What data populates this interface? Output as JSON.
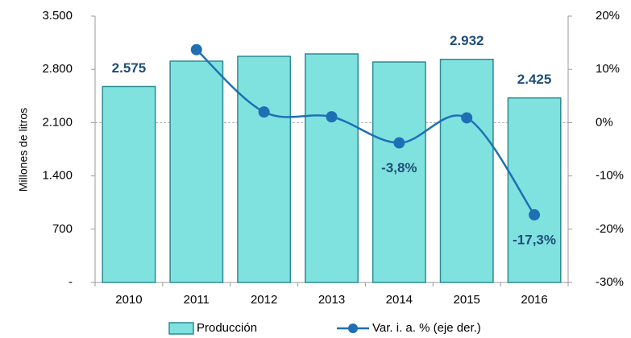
{
  "chart_data": {
    "type": "bar_line",
    "y_label": "Millones de litros",
    "categories": [
      "2010",
      "2011",
      "2012",
      "2013",
      "2014",
      "2015",
      "2016"
    ],
    "series": [
      {
        "name": "Producción",
        "type": "bar",
        "color": "#80e2df",
        "values": [
          2575,
          2908,
          2971,
          3003,
          2897,
          2932,
          2425
        ],
        "value_labels": [
          "2.575",
          null,
          null,
          null,
          null,
          "2.932",
          "2.425"
        ]
      },
      {
        "name": "Var. i. a. % (eje der.)",
        "type": "line",
        "axis": "y2",
        "color": "#1f6fb4",
        "values": [
          null,
          13.7,
          2.0,
          1.1,
          -3.8,
          0.9,
          -17.3
        ],
        "value_labels": [
          null,
          null,
          null,
          null,
          "-3,8%",
          null,
          "-17,3%"
        ]
      }
    ],
    "ylim": [
      0,
      3500
    ],
    "yticks": [
      {
        "value": 0,
        "label": "-"
      },
      700,
      {
        "value": 1400,
        "label": "1.400"
      },
      {
        "value": 2100,
        "label": "2.100"
      },
      {
        "value": 2800,
        "label": "2.800"
      },
      {
        "value": 3500,
        "label": "3.500"
      }
    ],
    "y2lim": [
      -30,
      20
    ],
    "y2ticks": [
      {
        "value": -30,
        "label": "-30%"
      },
      {
        "value": -20,
        "label": "-20%"
      },
      {
        "value": -10,
        "label": "-10%"
      },
      {
        "value": 0,
        "label": "0%"
      },
      {
        "value": 10,
        "label": "10%"
      },
      {
        "value": 20,
        "label": "20%"
      }
    ],
    "legend": "bottom"
  }
}
